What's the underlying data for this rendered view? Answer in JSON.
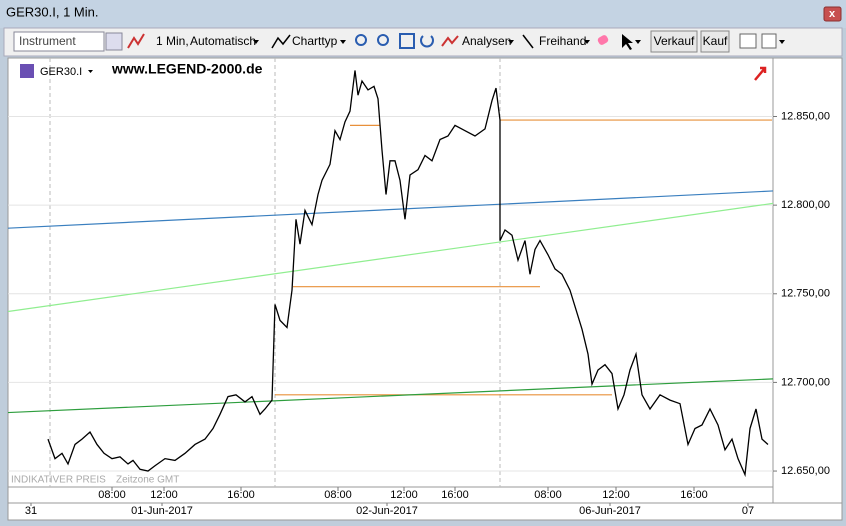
{
  "window": {
    "title": "GER30.I, 1 Min."
  },
  "toolbar": {
    "instrument": "Instrument",
    "interval": "1 Min,",
    "mode": "Automatisch",
    "chart_type": "Charttyp",
    "analyses": "Analysen",
    "freehand": "Freihand",
    "sell": "Verkauf",
    "buy": "Kauf"
  },
  "chart_data": {
    "type": "line",
    "watermark": "www.LEGEND-2000.de",
    "footnote": "INDIKATIVER PREIS",
    "timezone": "Zeitzone GMT",
    "x": [
      40,
      47,
      54,
      60,
      67,
      74,
      82,
      89,
      96,
      104,
      112,
      120,
      125,
      132,
      140,
      147,
      157,
      167,
      177,
      187,
      197,
      205,
      212,
      220,
      228,
      237,
      244,
      252,
      257,
      264,
      267,
      272,
      279,
      284,
      288,
      292,
      297,
      304,
      310,
      314,
      322,
      327,
      332,
      337,
      342,
      347,
      350,
      354,
      360,
      366,
      370,
      374,
      378,
      382,
      387,
      392,
      397,
      402,
      410,
      417,
      424,
      432,
      440,
      447,
      457,
      467,
      477,
      484,
      488,
      492,
      492,
      497,
      504,
      510,
      517,
      522,
      527,
      532,
      540,
      547,
      554,
      562,
      568,
      574,
      580,
      584,
      590,
      597,
      604,
      610,
      616,
      622,
      628,
      634,
      642,
      652,
      662,
      672,
      680,
      687,
      694,
      702,
      710,
      717,
      724,
      730,
      737,
      742,
      748,
      754,
      760
    ],
    "series": [
      {
        "name": "GER30.I",
        "color": "#000000",
        "values": [
          12668,
          12657,
          12660,
          12654,
          12665,
          12668,
          12672,
          12665,
          12660,
          12657,
          12658,
          12654,
          12656,
          12651,
          12650,
          12653,
          12657,
          12656,
          12660,
          12665,
          12668,
          12674,
          12682,
          12692,
          12693,
          12689,
          12692,
          12682,
          12685,
          12690,
          12744,
          12735,
          12731,
          12752,
          12792,
          12778,
          12797,
          12789,
          12806,
          12814,
          12823,
          12842,
          12837,
          12847,
          12853,
          12876,
          12862,
          12870,
          12865,
          12867,
          12860,
          12831,
          12806,
          12825,
          12825,
          12814,
          12792,
          12817,
          12820,
          12828,
          12825,
          12837,
          12839,
          12845,
          12842,
          12839,
          12843,
          12859,
          12866,
          12848,
          12780,
          12786,
          12783,
          12769,
          12780,
          12761,
          12775,
          12780,
          12772,
          12764,
          12761,
          12752,
          12741,
          12730,
          12716,
          12699,
          12707,
          12710,
          12705,
          12685,
          12693,
          12707,
          12716,
          12693,
          12685,
          12693,
          12690,
          12688,
          12665,
          12674,
          12676,
          12685,
          12676,
          12662,
          12668,
          12657,
          12648,
          12674,
          12685,
          12668,
          12665
        ]
      }
    ],
    "lines": [
      {
        "color": "#e8903a",
        "x": [
          342,
          372
        ],
        "values": [
          12845,
          12845
        ]
      },
      {
        "color": "#e8903a",
        "x": [
          492,
          764
        ],
        "values": [
          12848,
          12848
        ]
      },
      {
        "color": "#e8903a",
        "x": [
          285,
          532
        ],
        "values": [
          12754,
          12754
        ]
      },
      {
        "color": "#e8903a",
        "x": [
          267,
          604
        ],
        "values": [
          12693,
          12693
        ]
      },
      {
        "color": "#3a7fbf",
        "x": [
          0,
          765
        ],
        "values": [
          12787,
          12808
        ]
      },
      {
        "color": "#90ee90",
        "x": [
          0,
          765
        ],
        "values": [
          12740,
          12801
        ]
      },
      {
        "color": "#2e9e3e",
        "x": [
          0,
          765
        ],
        "values": [
          12683,
          12702
        ]
      }
    ],
    "xlim": [
      0,
      765
    ],
    "xticks": [
      {
        "value": 104,
        "label": "08:00"
      },
      {
        "value": 156,
        "label": "12:00"
      },
      {
        "value": 233,
        "label": "16:00"
      },
      {
        "value": 330,
        "label": "08:00"
      },
      {
        "value": 396,
        "label": "12:00"
      },
      {
        "value": 447,
        "label": "16:00"
      },
      {
        "value": 540,
        "label": "08:00"
      },
      {
        "value": 608,
        "label": "12:00"
      },
      {
        "value": 686,
        "label": "16:00"
      }
    ],
    "date_ticks": [
      {
        "value": 23,
        "label": "31"
      },
      {
        "value": 154,
        "label": "01-Jun-2017"
      },
      {
        "value": 379,
        "label": "02-Jun-2017"
      },
      {
        "value": 602,
        "label": "06-Jun-2017"
      },
      {
        "value": 740,
        "label": "07"
      }
    ],
    "ylim": [
      12641,
      12883
    ],
    "yticks": [
      {
        "value": 12650,
        "label": "12.650,00"
      },
      {
        "value": 12700,
        "label": "12.700,00"
      },
      {
        "value": 12750,
        "label": "12.750,00"
      },
      {
        "value": 12800,
        "label": "12.800,00"
      },
      {
        "value": 12850,
        "label": "12.850,00"
      }
    ]
  }
}
